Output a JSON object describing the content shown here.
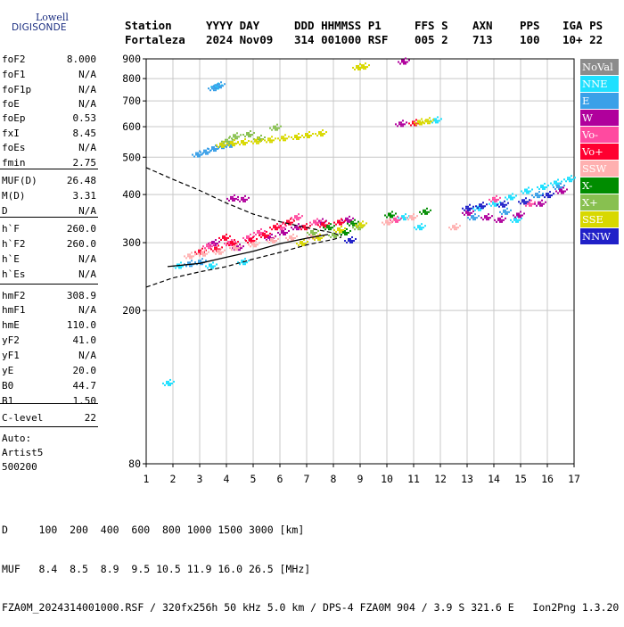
{
  "logo": {
    "lowell": "Lowell",
    "digisonde": "DIGISONDE"
  },
  "header": {
    "line1": [
      "Station",
      "YYYY DAY",
      "DDD HHMMSS P1",
      "FFS S",
      "AXN",
      "PPS",
      "IGA PS"
    ],
    "line2": [
      "Fortaleza",
      "2024 Nov09",
      "314 001000 RSF",
      "005 2",
      "713",
      "100",
      "10+ 22"
    ]
  },
  "params": [
    {
      "label": "foF2",
      "value": "8.000"
    },
    {
      "label": "foF1",
      "value": "N/A"
    },
    {
      "label": "foF1p",
      "value": "N/A"
    },
    {
      "label": "foE",
      "value": "N/A"
    },
    {
      "label": "foEp",
      "value": "0.53"
    },
    {
      "label": "fxI",
      "value": "8.45"
    },
    {
      "label": "foEs",
      "value": "N/A"
    },
    {
      "label": "fmin",
      "value": "2.75"
    },
    {
      "label": "MUF(D)",
      "value": "26.48"
    },
    {
      "label": "M(D)",
      "value": "3.31"
    },
    {
      "label": "D",
      "value": "N/A"
    },
    {
      "label": "h`F",
      "value": "260.0"
    },
    {
      "label": "h`F2",
      "value": "260.0"
    },
    {
      "label": "h`E",
      "value": "N/A"
    },
    {
      "label": "h`Es",
      "value": "N/A"
    },
    {
      "label": "hmF2",
      "value": "308.9"
    },
    {
      "label": "hmF1",
      "value": "N/A"
    },
    {
      "label": "hmE",
      "value": "110.0"
    },
    {
      "label": "yF2",
      "value": "41.0"
    },
    {
      "label": "yF1",
      "value": "N/A"
    },
    {
      "label": "yE",
      "value": "20.0"
    },
    {
      "label": "B0",
      "value": "44.7"
    },
    {
      "label": "B1",
      "value": "1.50"
    },
    {
      "label": "C-level",
      "value": "22"
    }
  ],
  "auto": {
    "title": "Auto:",
    "artist": "Artist5",
    "code": "500200"
  },
  "legend": [
    {
      "label": "NoVal",
      "color": "#8c8c8c",
      "text": "#ffffff"
    },
    {
      "label": "NNE",
      "color": "#1fe0ff",
      "text": "#ffffff"
    },
    {
      "label": "E",
      "color": "#3aa0e8",
      "text": "#ffffff"
    },
    {
      "label": "W",
      "color": "#b0009c",
      "text": "#ffffff"
    },
    {
      "label": "Vo-",
      "color": "#ff4aa0",
      "text": "#ffffff"
    },
    {
      "label": "Vo+",
      "color": "#ff0030",
      "text": "#ffffff"
    },
    {
      "label": "SSW",
      "color": "#ffb0b0",
      "text": "#ffffff"
    },
    {
      "label": "X-",
      "color": "#008c00",
      "text": "#ffffff"
    },
    {
      "label": "X+",
      "color": "#88c050",
      "text": "#ffffff"
    },
    {
      "label": "SSE",
      "color": "#d8d800",
      "text": "#ffffff"
    },
    {
      "label": "NNW",
      "color": "#2020c8",
      "text": "#ffffff"
    }
  ],
  "footer": {
    "d_row": "D     100  200  400  600  800 1000 1500 3000 [km]",
    "muf_row": "MUF   8.4  8.5  8.9  9.5 10.5 11.9 16.0 26.5 [MHz]",
    "info_row": "FZA0M_2024314001000.RSF / 320fx256h 50 kHz 5.0 km / DPS-4 FZA0M 904 / 3.9 S 321.6 E   Ion2Png 1.3.20"
  },
  "chart_data": {
    "type": "scatter",
    "xlim": [
      1,
      17
    ],
    "ylim": [
      80,
      900
    ],
    "y_scale": "log",
    "x_ticks": [
      1,
      2,
      3,
      4,
      5,
      6,
      7,
      8,
      9,
      10,
      11,
      12,
      13,
      14,
      15,
      16,
      17
    ],
    "y_ticks": [
      80,
      200,
      300,
      400,
      500,
      600,
      700,
      800,
      900
    ],
    "grid": true,
    "series": [
      {
        "name": "NNE",
        "color": "#1fe0ff",
        "points": [
          [
            1.8,
            130
          ],
          [
            2.2,
            262
          ],
          [
            3.4,
            262
          ],
          [
            4.6,
            268
          ],
          [
            10.6,
            350
          ],
          [
            11.2,
            330
          ],
          [
            13.4,
            370
          ],
          [
            14.0,
            380
          ],
          [
            14.6,
            395
          ],
          [
            15.2,
            410
          ],
          [
            15.8,
            420
          ],
          [
            16.3,
            430
          ],
          [
            16.8,
            440
          ],
          [
            11.8,
            625
          ],
          [
            3.6,
            765
          ],
          [
            14.8,
            345
          ]
        ]
      },
      {
        "name": "E",
        "color": "#3aa0e8",
        "points": [
          [
            2.9,
            510
          ],
          [
            3.2,
            518
          ],
          [
            3.5,
            528
          ],
          [
            3.8,
            536
          ],
          [
            4.1,
            540
          ],
          [
            3.5,
            758
          ],
          [
            3.7,
            770
          ],
          [
            2.6,
            265
          ],
          [
            3.0,
            268
          ],
          [
            13.2,
            350
          ],
          [
            14.4,
            362
          ],
          [
            15.6,
            400
          ],
          [
            16.4,
            420
          ]
        ]
      },
      {
        "name": "W",
        "color": "#b0009c",
        "points": [
          [
            3.5,
            300
          ],
          [
            4.4,
            292
          ],
          [
            5.6,
            310
          ],
          [
            6.1,
            320
          ],
          [
            6.6,
            330
          ],
          [
            7.5,
            340
          ],
          [
            8.5,
            345
          ],
          [
            10.6,
            888
          ],
          [
            10.5,
            612
          ],
          [
            13.0,
            360
          ],
          [
            13.7,
            350
          ],
          [
            14.2,
            345
          ],
          [
            14.9,
            355
          ],
          [
            15.7,
            380
          ],
          [
            16.5,
            410
          ],
          [
            4.2,
            392
          ],
          [
            4.6,
            390
          ]
        ]
      },
      {
        "name": "Vo-",
        "color": "#ff4aa0",
        "points": [
          [
            3.3,
            295
          ],
          [
            4.1,
            300
          ],
          [
            4.8,
            310
          ],
          [
            5.2,
            320
          ],
          [
            6.0,
            330
          ],
          [
            6.6,
            350
          ],
          [
            7.3,
            340
          ],
          [
            10.3,
            345
          ],
          [
            14.0,
            390
          ],
          [
            15.3,
            380
          ]
        ]
      },
      {
        "name": "Vo+",
        "color": "#ff0030",
        "points": [
          [
            3.0,
            285
          ],
          [
            3.6,
            290
          ],
          [
            4.2,
            300
          ],
          [
            4.9,
            305
          ],
          [
            5.4,
            315
          ],
          [
            5.8,
            330
          ],
          [
            6.3,
            340
          ],
          [
            6.9,
            330
          ],
          [
            7.6,
            335
          ],
          [
            8.2,
            340
          ],
          [
            11.0,
            615
          ],
          [
            3.9,
            310
          ]
        ]
      },
      {
        "name": "SSW",
        "color": "#ffb0b0",
        "points": [
          [
            2.6,
            278
          ],
          [
            3.1,
            282
          ],
          [
            3.7,
            285
          ],
          [
            4.3,
            292
          ],
          [
            5.0,
            298
          ],
          [
            5.7,
            305
          ],
          [
            6.4,
            310
          ],
          [
            7.2,
            312
          ],
          [
            10.0,
            340
          ],
          [
            10.9,
            350
          ],
          [
            12.5,
            330
          ]
        ]
      },
      {
        "name": "X-",
        "color": "#008c00",
        "points": [
          [
            7.8,
            330
          ],
          [
            8.4,
            320
          ],
          [
            8.7,
            338
          ],
          [
            10.1,
            355
          ],
          [
            11.4,
            362
          ]
        ]
      },
      {
        "name": "X+",
        "color": "#88c050",
        "points": [
          [
            4.0,
            552
          ],
          [
            4.3,
            568
          ],
          [
            4.8,
            575
          ],
          [
            5.2,
            560
          ],
          [
            5.8,
            598
          ],
          [
            7.2,
            320
          ],
          [
            8.0,
            315
          ],
          [
            8.9,
            330
          ]
        ]
      },
      {
        "name": "SSE",
        "color": "#d8d800",
        "points": [
          [
            3.8,
            540
          ],
          [
            4.2,
            545
          ],
          [
            4.6,
            548
          ],
          [
            5.1,
            552
          ],
          [
            5.6,
            556
          ],
          [
            6.1,
            562
          ],
          [
            6.6,
            566
          ],
          [
            7.0,
            572
          ],
          [
            7.5,
            578
          ],
          [
            8.9,
            858
          ],
          [
            9.1,
            862
          ],
          [
            11.2,
            618
          ],
          [
            11.5,
            622
          ],
          [
            6.8,
            300
          ],
          [
            7.4,
            310
          ],
          [
            8.2,
            325
          ],
          [
            9.0,
            335
          ]
        ]
      },
      {
        "name": "NNW",
        "color": "#2020c8",
        "points": [
          [
            13.0,
            370
          ],
          [
            13.5,
            375
          ],
          [
            14.3,
            378
          ],
          [
            15.1,
            385
          ],
          [
            16.0,
            400
          ],
          [
            8.6,
            305
          ]
        ]
      }
    ],
    "lines": {
      "dashed_lower": [
        [
          1,
          230
        ],
        [
          2,
          243
        ],
        [
          3,
          252
        ],
        [
          4,
          260
        ],
        [
          5,
          272
        ],
        [
          6,
          283
        ],
        [
          7,
          296
        ],
        [
          8,
          306
        ],
        [
          8.3,
          310
        ]
      ],
      "dashed_upper": [
        [
          1,
          470
        ],
        [
          2,
          438
        ],
        [
          3,
          410
        ],
        [
          4,
          380
        ],
        [
          5,
          356
        ],
        [
          6,
          340
        ],
        [
          7,
          328
        ],
        [
          8,
          318
        ],
        [
          8.3,
          312
        ]
      ],
      "black_profile": [
        [
          1.8,
          260
        ],
        [
          3,
          265
        ],
        [
          4,
          275
        ],
        [
          5,
          285
        ],
        [
          6,
          298
        ],
        [
          7,
          308
        ],
        [
          7.8,
          315
        ]
      ]
    }
  }
}
